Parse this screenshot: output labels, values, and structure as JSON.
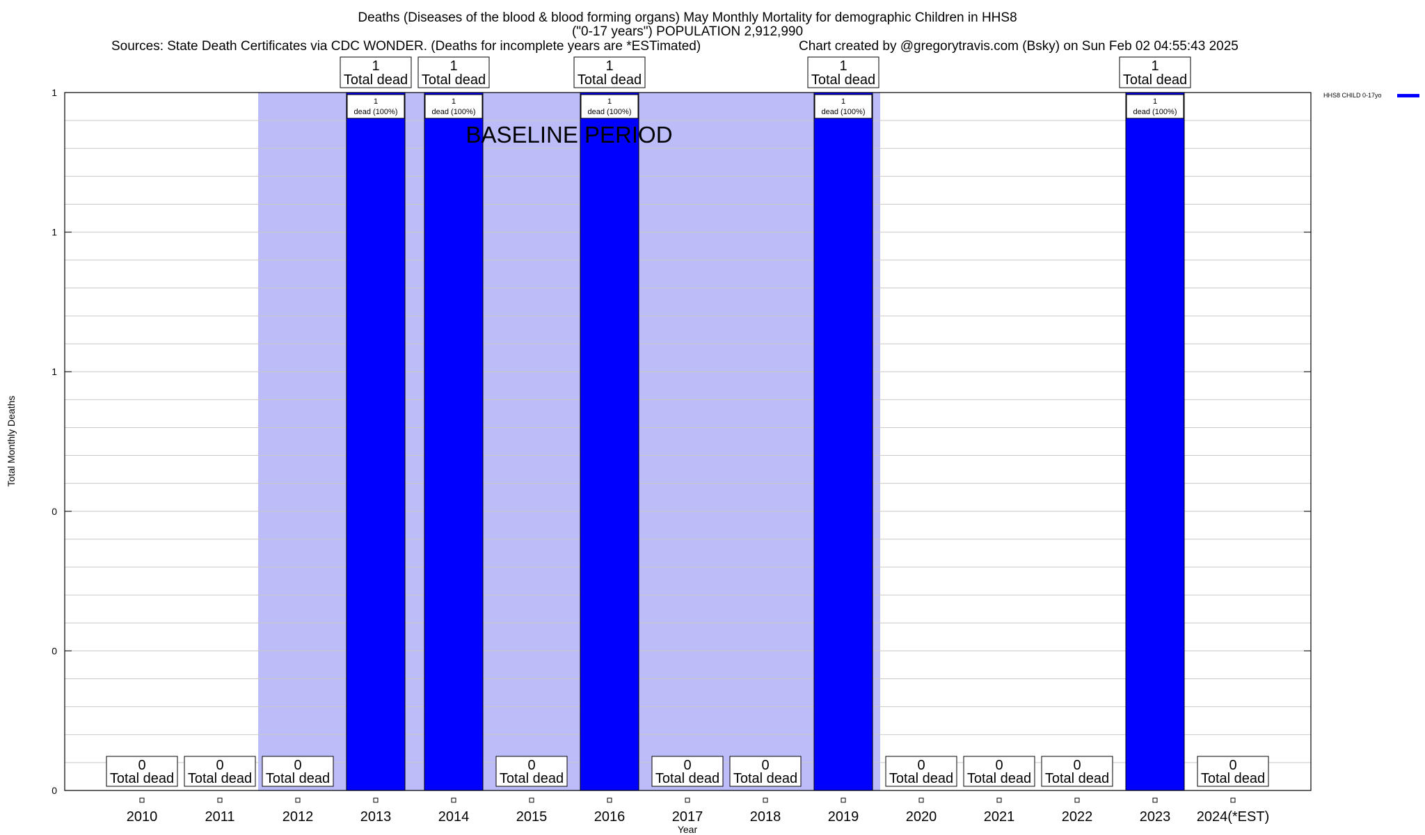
{
  "chart_data": {
    "type": "bar",
    "title_lines": [
      "Deaths (Diseases of the blood & blood forming organs) May Monthly Mortality for demographic Children in HHS8",
      "(\"0-17 years\") POPULATION 2,912,990"
    ],
    "sources": "Sources: State Death Certificates via CDC WONDER. (Deaths for incomplete years are *ESTimated)",
    "credit": "Chart created by @gregorytravis.com (Bsky) on Sun Feb 02 04:55:43 2025",
    "xlabel": "Year",
    "ylabel": "Total Monthly Deaths",
    "categories": [
      "2010",
      "2011",
      "2012",
      "2013",
      "2014",
      "2015",
      "2016",
      "2017",
      "2018",
      "2019",
      "2020",
      "2021",
      "2022",
      "2023",
      "2024(*EST)"
    ],
    "series": [
      {
        "name": "HHS8 CHILD 0-17yo",
        "color": "#0000ff",
        "values": [
          0,
          0,
          0,
          1,
          1,
          0,
          1,
          0,
          0,
          1,
          0,
          0,
          0,
          1,
          0
        ]
      }
    ],
    "ylim": [
      0,
      1
    ],
    "ytick_labels": [
      "0",
      "0",
      "0",
      "1",
      "1",
      "1"
    ],
    "total_label": "Total dead",
    "bar_label": "dead (100%)",
    "baseline_period": {
      "label": "BASELINE PERIOD",
      "from": "2012",
      "to": "2019",
      "color": "#bcbcf8"
    },
    "grid": true,
    "legend_position": "top-right"
  }
}
